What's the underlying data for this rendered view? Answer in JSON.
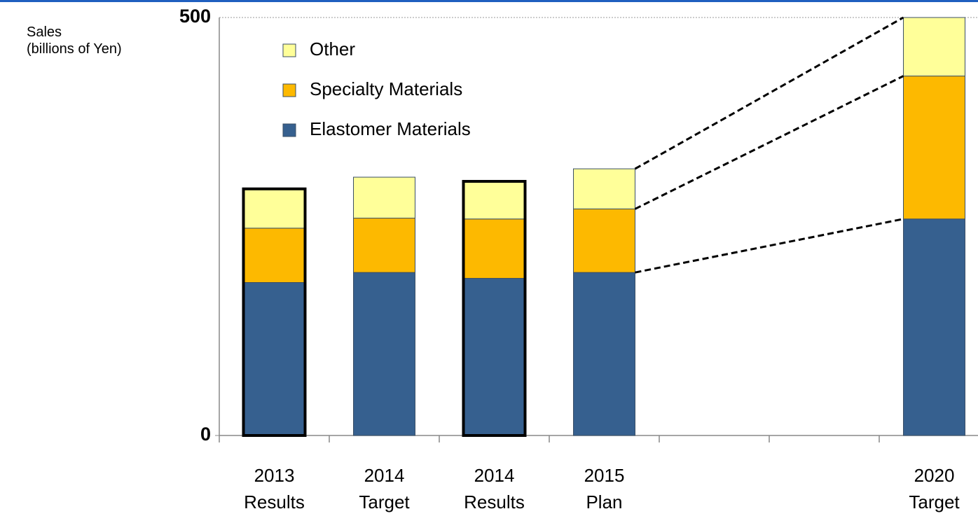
{
  "chart_data": {
    "type": "stacked_bar",
    "y_label": "Sales\n(billions of Yen)",
    "categories": [
      "2013\nResults",
      "2014\nTarget",
      "2014\nResults",
      "2015\nPlan",
      null,
      null,
      "2020\nTarget"
    ],
    "series": [
      {
        "name": "Elastomer Materials",
        "color": "#36608f",
        "values": [
          183,
          195,
          188,
          195,
          null,
          null,
          259
        ]
      },
      {
        "name": "Specialty Materials",
        "color": "#fdb900",
        "values": [
          65,
          65,
          71,
          76,
          null,
          null,
          171
        ]
      },
      {
        "name": "Other",
        "color": "#ffff99",
        "values": [
          47,
          49,
          45,
          48,
          null,
          null,
          70
        ]
      }
    ],
    "highlighted": [
      true,
      false,
      true,
      false,
      false,
      false,
      false
    ],
    "connectors": {
      "from": 3,
      "to": 6
    },
    "ylim": [
      0,
      500
    ],
    "yticks": [
      0,
      500
    ],
    "legend": "top-left"
  }
}
